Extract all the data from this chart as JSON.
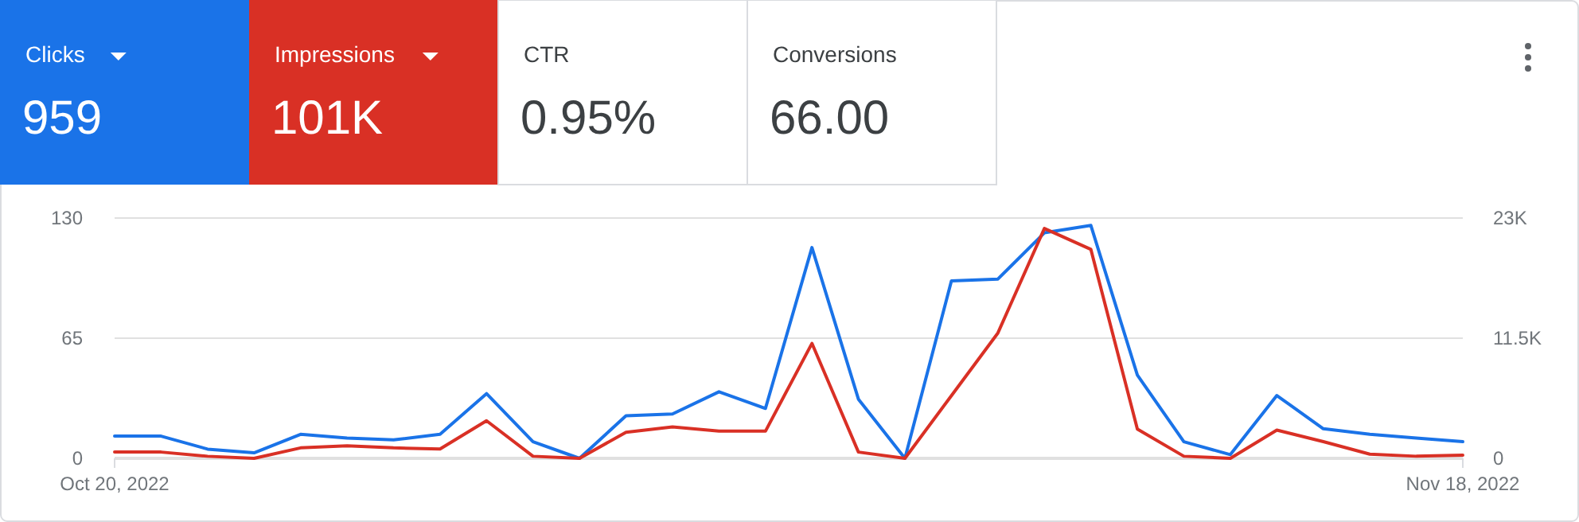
{
  "chart_data": [
    {
      "type": "other",
      "categories": [
        "Clicks",
        "Impressions",
        "CTR",
        "Conversions"
      ],
      "value_labels": [
        "959",
        "101K",
        "0.95%",
        "66.00"
      ],
      "colors": [
        "#1a73e8",
        "#d93025",
        "#ffffff",
        "#ffffff"
      ]
    },
    {
      "type": "line",
      "x": [
        "2022-10-20",
        "2022-10-21",
        "2022-10-22",
        "2022-10-23",
        "2022-10-24",
        "2022-10-25",
        "2022-10-26",
        "2022-10-27",
        "2022-10-28",
        "2022-10-29",
        "2022-10-30",
        "2022-10-31",
        "2022-11-01",
        "2022-11-02",
        "2022-11-03",
        "2022-11-04",
        "2022-11-05",
        "2022-11-06",
        "2022-11-07",
        "2022-11-08",
        "2022-11-09",
        "2022-11-10",
        "2022-11-11",
        "2022-11-12",
        "2022-11-13",
        "2022-11-14",
        "2022-11-15",
        "2022-11-16",
        "2022-11-17",
        "2022-11-18"
      ],
      "xlim": [
        "2022-10-20",
        "2022-11-18"
      ],
      "xticks": [
        {
          "value": "2022-10-20",
          "label": "Oct 20, 2022"
        },
        {
          "value": "2022-11-18",
          "label": "Nov 18, 2022"
        }
      ],
      "ylim": [
        0,
        130
      ],
      "yticks": [
        0,
        65,
        130
      ],
      "y2lim": [
        0,
        23000
      ],
      "y2ticks": [
        {
          "value": 0,
          "label": "0"
        },
        {
          "value": 11500,
          "label": "11.5K"
        },
        {
          "value": 23000,
          "label": "23K"
        }
      ],
      "grid": "y",
      "marker": "none",
      "line_style": "solid",
      "series": [
        {
          "color": "#1a73e8",
          "values": [
            12,
            12,
            5,
            3,
            13,
            11,
            10,
            13,
            35,
            9,
            0,
            23,
            24,
            36,
            27,
            114,
            32,
            0,
            96,
            97,
            122,
            126,
            45,
            9,
            2,
            34,
            16,
            13,
            11,
            9
          ]
        },
        {
          "color": "#d93025",
          "axis": "y2",
          "values": [
            600,
            600,
            200,
            0,
            1000,
            1200,
            1000,
            900,
            3600,
            200,
            0,
            2500,
            3000,
            2600,
            2600,
            11000,
            600,
            0,
            6000,
            12000,
            22000,
            20000,
            2800,
            200,
            0,
            2700,
            1600,
            400,
            200,
            300
          ]
        }
      ]
    }
  ]
}
